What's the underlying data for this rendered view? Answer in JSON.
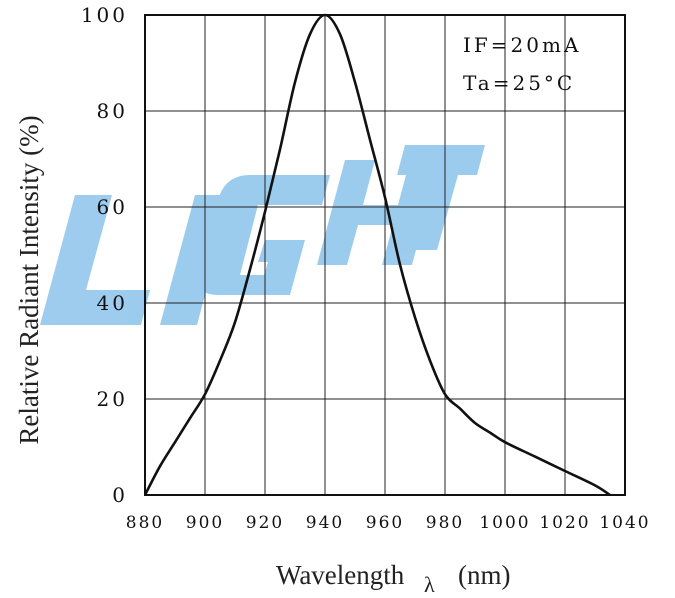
{
  "chart_data": {
    "type": "line",
    "title": "",
    "xlabel": "Wavelength",
    "xlabel_symbol": "λ",
    "xlabel_unit": "(nm)",
    "ylabel": "Relative Radiant Intensity (%)",
    "xlim": [
      880,
      1040
    ],
    "ylim": [
      0,
      100
    ],
    "x_ticks": [
      "880",
      "900",
      "920",
      "940",
      "960",
      "980",
      "1000",
      "1020",
      "1040"
    ],
    "y_ticks": [
      "0",
      "20",
      "40",
      "60",
      "80",
      "100"
    ],
    "grid": true,
    "watermark": "LIGHT",
    "annotations": [
      "IF=20mA",
      "Ta=25°C"
    ],
    "series": [
      {
        "x": [
          880,
          885,
          890,
          895,
          900,
          905,
          910,
          915,
          920,
          925,
          930,
          935,
          940,
          945,
          950,
          955,
          960,
          965,
          970,
          975,
          980,
          985,
          990,
          995,
          1000,
          1010,
          1020,
          1030,
          1035
        ],
        "y": [
          0,
          6,
          11,
          16,
          21,
          28,
          36,
          47,
          59,
          72,
          86,
          96,
          100,
          96,
          86,
          74,
          62,
          48,
          37,
          28,
          21,
          18,
          15,
          13,
          11,
          8,
          5,
          2,
          0
        ]
      }
    ]
  }
}
